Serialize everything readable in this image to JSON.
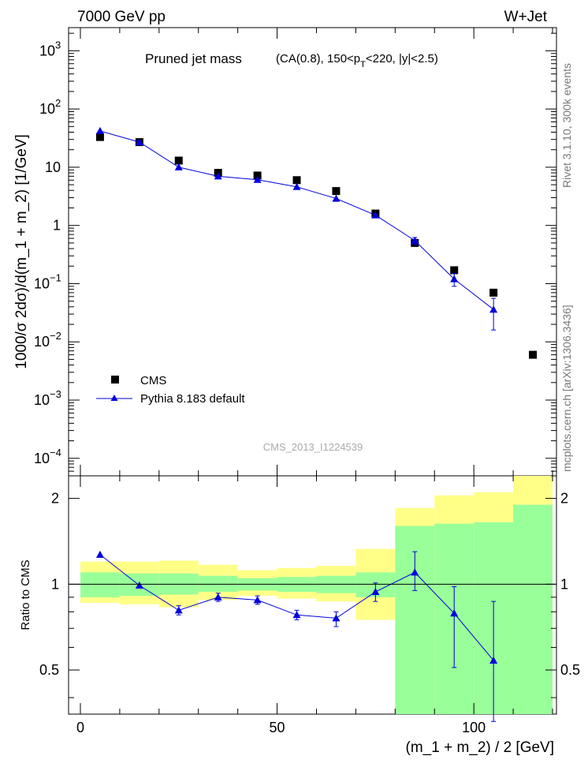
{
  "header": {
    "left_label": "7000 GeV pp",
    "right_label": "W+Jet"
  },
  "side_labels": {
    "rivet": "Rivet 3.1.10,  300k events",
    "source": "mcplots.cern.ch [arXiv:1306.3436]"
  },
  "watermark": "CMS_2013_I1224539",
  "chart_data": [
    {
      "type": "scatter",
      "panel": "main",
      "title": "Pruned jet mass",
      "subtitle_prefix": "(CA(0.8), 150<p",
      "subtitle_sub": "T",
      "subtitle_suffix": "<220, |y|<2.5)",
      "ylabel": "1000/σ 2dσ)/d(m_1 + m_2) [1/GeV]",
      "yscale": "log",
      "ylim": [
        5e-05,
        2500
      ],
      "xlim": [
        -3,
        121
      ],
      "yticks": [
        {
          "value": 1000,
          "base": "10",
          "exp": "3"
        },
        {
          "value": 100,
          "base": "10",
          "exp": "2"
        },
        {
          "value": 10,
          "base": "10",
          "exp": ""
        },
        {
          "value": 1,
          "base": "1",
          "exp": ""
        },
        {
          "value": 0.1,
          "base": "10",
          "exp": "−1"
        },
        {
          "value": 0.01,
          "base": "10",
          "exp": "−2"
        },
        {
          "value": 0.001,
          "base": "10",
          "exp": "−3"
        },
        {
          "value": 0.0001,
          "base": "10",
          "exp": "−4"
        }
      ],
      "legend": [
        "CMS",
        "Pythia 8.183 default"
      ],
      "legend_position": "bottom-left",
      "series": [
        {
          "name": "CMS",
          "marker": "square",
          "color": "#000000",
          "x": [
            5,
            15,
            25,
            35,
            45,
            55,
            65,
            75,
            85,
            95,
            105,
            115
          ],
          "y": [
            33,
            27,
            13,
            8,
            7.2,
            6,
            3.9,
            1.6,
            0.5,
            0.17,
            0.07,
            0.006
          ]
        },
        {
          "name": "Pythia 8.183 default",
          "marker": "triangle",
          "color": "#0000dd",
          "x": [
            5,
            15,
            25,
            35,
            45,
            55,
            65,
            75,
            85,
            95,
            105
          ],
          "y": [
            42,
            27,
            10,
            7,
            6.1,
            4.6,
            2.9,
            1.5,
            0.55,
            0.12,
            0.036
          ],
          "y_low": [
            null,
            null,
            null,
            null,
            null,
            null,
            null,
            null,
            0.47,
            0.09,
            0.016
          ],
          "y_high": [
            null,
            null,
            null,
            null,
            null,
            null,
            null,
            null,
            0.62,
            0.15,
            0.056
          ]
        }
      ]
    },
    {
      "type": "line",
      "panel": "ratio",
      "ylabel": "Ratio to CMS",
      "xlabel": "(m_1 + m_2) / 2 [GeV]",
      "xlim": [
        -3,
        121
      ],
      "ylim": [
        0.35,
        2.4
      ],
      "yscale": "log",
      "xticks": [
        0,
        50,
        100
      ],
      "xtick_labels": [
        "0",
        "50",
        "100"
      ],
      "yticks": [
        0.5,
        1,
        2
      ],
      "ytick_labels": [
        "0.5",
        "1",
        "2"
      ],
      "bands": [
        {
          "x0": 0,
          "x1": 10,
          "green": [
            0.9,
            1.1
          ],
          "yellow": [
            0.86,
            1.2
          ]
        },
        {
          "x0": 10,
          "x1": 20,
          "green": [
            0.91,
            1.09
          ],
          "yellow": [
            0.85,
            1.2
          ]
        },
        {
          "x0": 20,
          "x1": 30,
          "green": [
            0.92,
            1.09
          ],
          "yellow": [
            0.83,
            1.21
          ]
        },
        {
          "x0": 30,
          "x1": 40,
          "green": [
            0.94,
            1.07
          ],
          "yellow": [
            0.88,
            1.17
          ]
        },
        {
          "x0": 40,
          "x1": 50,
          "green": [
            0.95,
            1.05
          ],
          "yellow": [
            0.91,
            1.12
          ]
        },
        {
          "x0": 50,
          "x1": 60,
          "green": [
            0.94,
            1.06
          ],
          "yellow": [
            0.89,
            1.14
          ]
        },
        {
          "x0": 60,
          "x1": 70,
          "green": [
            0.93,
            1.07
          ],
          "yellow": [
            0.87,
            1.16
          ]
        },
        {
          "x0": 70,
          "x1": 80,
          "green": [
            0.9,
            1.1
          ],
          "yellow": [
            0.75,
            1.33
          ]
        },
        {
          "x0": 80,
          "x1": 90,
          "green": [
            0.35,
            1.6
          ],
          "yellow": [
            0.35,
            1.85
          ]
        },
        {
          "x0": 90,
          "x1": 100,
          "green": [
            0.35,
            1.63
          ],
          "yellow": [
            0.35,
            2.05
          ]
        },
        {
          "x0": 100,
          "x1": 110,
          "green": [
            0.35,
            1.65
          ],
          "yellow": [
            0.35,
            2.1
          ]
        },
        {
          "x0": 110,
          "x1": 120,
          "green": [
            0.35,
            1.9
          ],
          "yellow": [
            0.35,
            2.4
          ]
        }
      ],
      "series": [
        {
          "name": "Pythia 8.183 default",
          "color": "#0000dd",
          "x": [
            5,
            15,
            25,
            35,
            45,
            55,
            65,
            75,
            85,
            95,
            105
          ],
          "y": [
            1.27,
            0.99,
            0.81,
            0.9,
            0.88,
            0.78,
            0.76,
            0.94,
            1.1,
            0.79,
            0.54
          ],
          "y_low": [
            null,
            null,
            0.78,
            0.87,
            0.85,
            0.75,
            0.71,
            0.87,
            0.95,
            0.51,
            0.33
          ],
          "y_high": [
            null,
            null,
            0.84,
            0.93,
            0.91,
            0.81,
            0.8,
            1.01,
            1.3,
            0.98,
            0.87
          ]
        }
      ]
    }
  ]
}
